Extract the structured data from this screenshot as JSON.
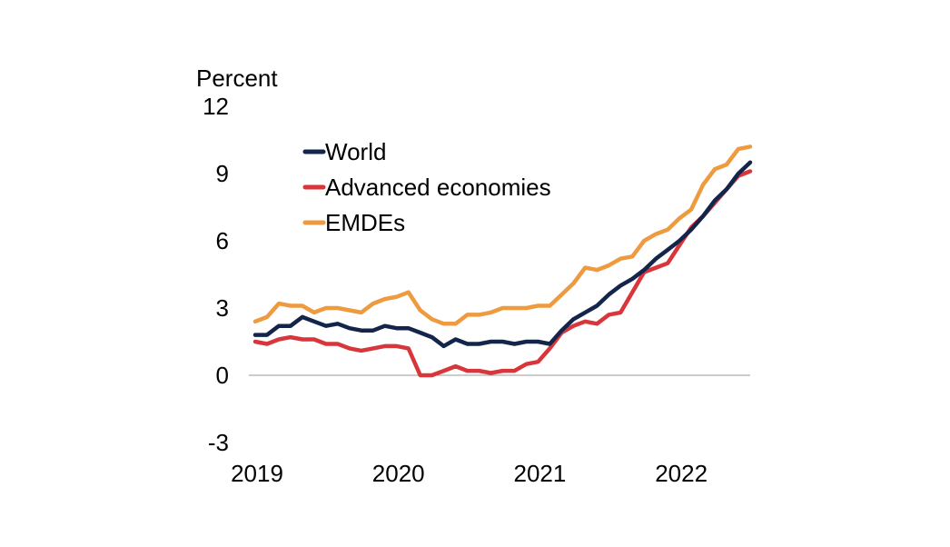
{
  "chart_data": {
    "type": "line",
    "ylabel": "Percent",
    "ylim": [
      -3,
      12
    ],
    "yticks": [
      -3,
      0,
      3,
      6,
      9,
      12
    ],
    "ytick_labels": [
      "-3",
      "0",
      "3",
      "6",
      "9",
      "12"
    ],
    "x_tick_labels": [
      "2019",
      "2020",
      "2021",
      "2022"
    ],
    "x_tick_values": [
      0,
      12,
      24,
      36
    ],
    "x_range": [
      0,
      42
    ],
    "x_description": "monthly observations from Jan 2019 (0) to Jul 2022 (42)",
    "legend_position": "top-left",
    "series": [
      {
        "name": "World",
        "color": "#13254a",
        "values": [
          1.8,
          1.8,
          2.2,
          2.2,
          2.6,
          2.4,
          2.2,
          2.3,
          2.1,
          2.0,
          2.0,
          2.2,
          2.1,
          2.1,
          1.9,
          1.7,
          1.3,
          1.6,
          1.4,
          1.4,
          1.5,
          1.5,
          1.4,
          1.5,
          1.5,
          1.4,
          2.0,
          2.5,
          2.8,
          3.1,
          3.6,
          4.0,
          4.3,
          4.7,
          5.2,
          5.6,
          6.0,
          6.5,
          7.1,
          7.8,
          8.3,
          9.0,
          9.5
        ]
      },
      {
        "name": "Advanced economies",
        "color": "#d9363b",
        "values": [
          1.5,
          1.4,
          1.6,
          1.7,
          1.6,
          1.6,
          1.4,
          1.4,
          1.2,
          1.1,
          1.2,
          1.3,
          1.3,
          1.2,
          0.0,
          0.0,
          0.2,
          0.4,
          0.2,
          0.2,
          0.1,
          0.2,
          0.2,
          0.5,
          0.6,
          1.2,
          1.9,
          2.2,
          2.4,
          2.3,
          2.7,
          2.8,
          3.7,
          4.6,
          4.8,
          5.0,
          5.8,
          6.6,
          7.1,
          7.7,
          8.3,
          8.9,
          9.1
        ]
      },
      {
        "name": "EMDEs",
        "color": "#ee9a3e",
        "values": [
          2.4,
          2.6,
          3.2,
          3.1,
          3.1,
          2.8,
          3.0,
          3.0,
          2.9,
          2.8,
          3.2,
          3.4,
          3.5,
          3.7,
          2.9,
          2.5,
          2.3,
          2.3,
          2.7,
          2.7,
          2.8,
          3.0,
          3.0,
          3.0,
          3.1,
          3.1,
          3.6,
          4.1,
          4.8,
          4.7,
          4.9,
          5.2,
          5.3,
          6.0,
          6.3,
          6.5,
          7.0,
          7.4,
          8.5,
          9.2,
          9.4,
          10.1,
          10.2
        ]
      }
    ]
  }
}
